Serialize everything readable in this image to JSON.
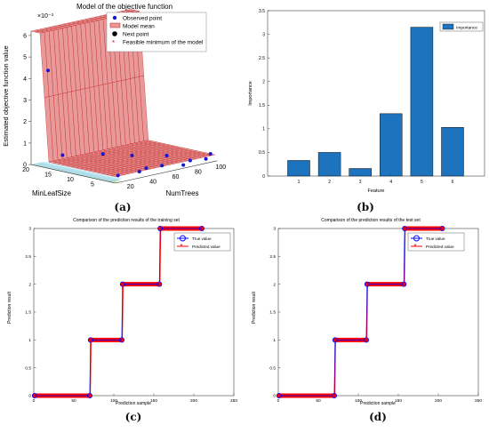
{
  "captions": {
    "a": "(a)",
    "b": "(b)",
    "c": "(c)",
    "d": "(d)"
  },
  "colors": {
    "observed": "#1515d6",
    "surface_fill": "#e89a9a",
    "surface_line": "#c21d1d",
    "bar": "#1e73be",
    "true_line": "#0000ff",
    "pred_line": "#ff0000"
  },
  "chart_data": [
    {
      "type": "scatter",
      "title": "Model of the objective function",
      "zlabel": "Estimated objective function value",
      "zscale_label": "×10⁻³",
      "xlabel": "MinLeafSize",
      "ylabel": "NumTrees",
      "z_ticks": [
        "0",
        "1",
        "2",
        "3",
        "4",
        "5",
        "6"
      ],
      "minleaf_ticks": [
        "20",
        "15",
        "10",
        "5"
      ],
      "numtrees_ticks": [
        "20",
        "40",
        "60",
        "80",
        "100"
      ],
      "legend": [
        "Observed point",
        "Model mean",
        "Next point",
        "Feasible minimum of the model"
      ],
      "observed_points": [
        {
          "minleaf": 20,
          "numtrees": 25,
          "z": 4.2
        },
        {
          "minleaf": 3,
          "numtrees": 20,
          "z": 0.15
        },
        {
          "minleaf": 2,
          "numtrees": 35,
          "z": 0.2
        },
        {
          "minleaf": 3,
          "numtrees": 45,
          "z": 0.2
        },
        {
          "minleaf": 2,
          "numtrees": 55,
          "z": 0.25
        },
        {
          "minleaf": 1,
          "numtrees": 70,
          "z": 0.15
        },
        {
          "minleaf": 2,
          "numtrees": 80,
          "z": 0.2
        },
        {
          "minleaf": 1,
          "numtrees": 90,
          "z": 0.2
        },
        {
          "minleaf": 2,
          "numtrees": 98,
          "z": 0.3
        },
        {
          "minleaf": 18,
          "numtrees": 30,
          "z": 0.3
        },
        {
          "minleaf": 14,
          "numtrees": 50,
          "z": 0.3
        },
        {
          "minleaf": 10,
          "numtrees": 60,
          "z": 0.3
        },
        {
          "minleaf": 6,
          "numtrees": 75,
          "z": 0.3
        }
      ]
    },
    {
      "type": "bar",
      "categories": [
        "1",
        "2",
        "3",
        "4",
        "5",
        "6"
      ],
      "values": [
        0.33,
        0.5,
        0.16,
        1.32,
        3.15,
        1.03
      ],
      "xlabel": "Feature",
      "ylabel": "Importance",
      "ylim": [
        0,
        3.5
      ],
      "y_ticks": [
        "0",
        "0.5",
        "1",
        "1.5",
        "2",
        "2.5",
        "3",
        "3.5"
      ],
      "legend": [
        "Importance"
      ],
      "legend_position": "top-right"
    },
    {
      "type": "line",
      "title": "Comparison of the prediction results of the training set",
      "xlabel": "Prediction sample",
      "ylabel": "Prediction result",
      "xlim": [
        0,
        250
      ],
      "ylim": [
        0,
        3
      ],
      "x_ticks": [
        "0",
        "50",
        "100",
        "150",
        "200",
        "250"
      ],
      "y_ticks": [
        "0",
        "0.5",
        "1",
        "1.5",
        "2",
        "2.5",
        "3"
      ],
      "legend": [
        "True value",
        "Predicted value"
      ],
      "legend_position": "top-right",
      "segments": [
        {
          "x_start": 1,
          "x_end": 70,
          "y": 0
        },
        {
          "x_start": 71,
          "x_end": 110,
          "y": 1
        },
        {
          "x_start": 111,
          "x_end": 157,
          "y": 2
        },
        {
          "x_start": 158,
          "x_end": 210,
          "y": 3
        }
      ]
    },
    {
      "type": "line",
      "title": "Comparison of the prediction results of the test set",
      "xlabel": "Prediction sample",
      "ylabel": "Prediction result",
      "xlim": [
        0,
        250
      ],
      "ylim": [
        0,
        3
      ],
      "x_ticks": [
        "0",
        "50",
        "100",
        "150",
        "200",
        "250"
      ],
      "y_ticks": [
        "0",
        "0.5",
        "1",
        "1.5",
        "2",
        "2.5",
        "3"
      ],
      "legend": [
        "True value",
        "Predicted value"
      ],
      "legend_position": "top-right",
      "segments": [
        {
          "x_start": 1,
          "x_end": 70,
          "y": 0
        },
        {
          "x_start": 71,
          "x_end": 110,
          "y": 1
        },
        {
          "x_start": 111,
          "x_end": 157,
          "y": 2
        },
        {
          "x_start": 158,
          "x_end": 205,
          "y": 3
        }
      ]
    }
  ]
}
